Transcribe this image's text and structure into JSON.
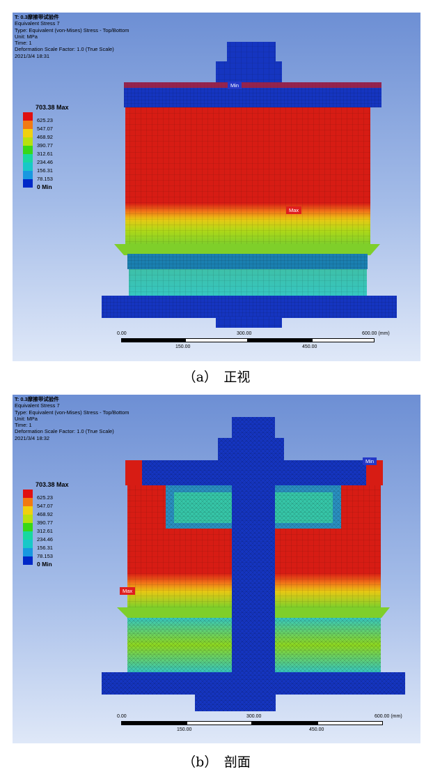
{
  "panels": [
    {
      "info": {
        "title": "T: 0.3摩擦带试验件",
        "result": "Equivalent Stress 7",
        "type": "Type: Equivalent (von-Mises) Stress - Top/Bottom",
        "unit": "Unit: MPa",
        "time": "Time: 1",
        "deformation": "Deformation Scale Factor: 1.0 (True Scale)",
        "date": "2021/3/4 18:31"
      },
      "legend": {
        "max_label": "703.38 Max",
        "values": [
          "625.23",
          "547.07",
          "468.92",
          "390.77",
          "312.61",
          "234.46",
          "156.31",
          "78.153"
        ],
        "min_label": "0 Min"
      },
      "markers": {
        "max": "Max",
        "min": "Min"
      },
      "scale": {
        "top_labels": [
          "0.00",
          "300.00",
          "600.00 (mm)"
        ],
        "bottom_labels": [
          "150.00",
          "450.00"
        ]
      },
      "caption": "（a）　正视"
    },
    {
      "info": {
        "title": "T: 0.3摩擦带试验件",
        "result": "Equivalent Stress 7",
        "type": "Type: Equivalent (von-Mises) Stress - Top/Bottom",
        "unit": "Unit: MPa",
        "time": "Time: 1",
        "deformation": "Deformation Scale Factor: 1.0 (True Scale)",
        "date": "2021/3/4 18:32"
      },
      "legend": {
        "max_label": "703.38 Max",
        "values": [
          "625.23",
          "547.07",
          "468.92",
          "390.77",
          "312.61",
          "234.46",
          "156.31",
          "78.153"
        ],
        "min_label": "0 Min"
      },
      "markers": {
        "max": "Max",
        "min": "Min"
      },
      "scale": {
        "top_labels": [
          "0.00",
          "300.00",
          "600.00 (mm)"
        ],
        "bottom_labels": [
          "150.00",
          "450.00"
        ]
      },
      "caption": "（b）　剖面"
    }
  ],
  "colors": {
    "legend": [
      "#e01010",
      "#f27a12",
      "#f0d010",
      "#b8e010",
      "#38d818",
      "#18d8a0",
      "#18c8c8",
      "#1898e0",
      "#0028c8"
    ],
    "body_red": "#d71c14",
    "mesh_blue": "#1535c0",
    "teal": "#36c6c0"
  }
}
